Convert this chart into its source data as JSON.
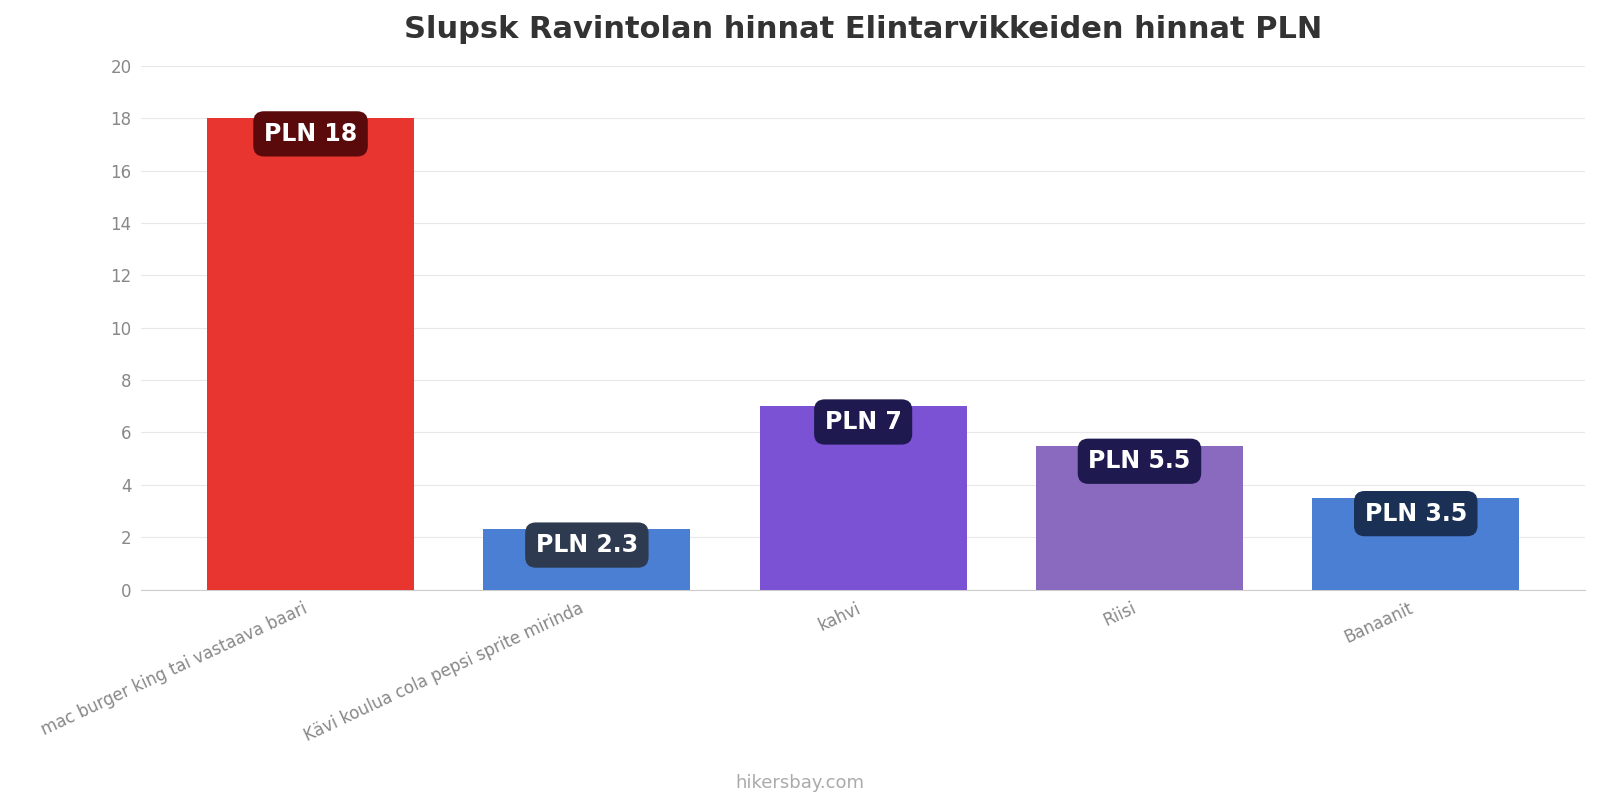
{
  "title": "Slupsk Ravintolan hinnat Elintarvikkeiden hinnat PLN",
  "categories": [
    "mac burger king tai vastaava baari",
    "Kävi koulua cola pepsi sprite mirinda",
    "kahvi",
    "Riisi",
    "Banaanit"
  ],
  "values": [
    18,
    2.3,
    7,
    5.5,
    3.5
  ],
  "bar_colors": [
    "#e83530",
    "#4a7fd4",
    "#7b52d3",
    "#8a6abf",
    "#4a7fd4"
  ],
  "label_bg_colors": [
    "#5a0a0a",
    "#2d3a50",
    "#1e1a50",
    "#1e1a50",
    "#1a3055"
  ],
  "labels": [
    "PLN 18",
    "PLN 2.3",
    "PLN 7",
    "PLN 5.5",
    "PLN 3.5"
  ],
  "ylim": [
    0,
    20
  ],
  "yticks": [
    0,
    2,
    4,
    6,
    8,
    10,
    12,
    14,
    16,
    18,
    20
  ],
  "footer": "hikersbay.com",
  "background_color": "#ffffff",
  "title_fontsize": 22,
  "label_fontsize": 17,
  "tick_fontsize": 12,
  "footer_fontsize": 13,
  "bar_width": 0.75
}
